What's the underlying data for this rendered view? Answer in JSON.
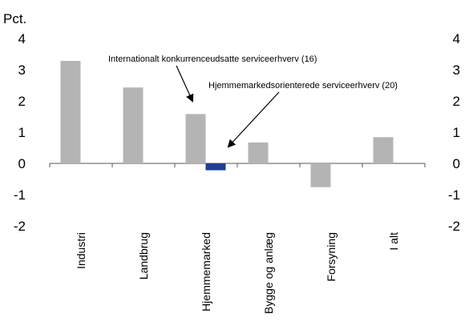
{
  "chart_data": {
    "type": "bar",
    "ylabel": "Pct.",
    "ylim": [
      -2,
      4
    ],
    "yticks": [
      4,
      3,
      2,
      1,
      0,
      -1,
      -2
    ],
    "ytick_labels": [
      "4",
      "3",
      "2",
      "1",
      "0",
      "-1",
      "-2"
    ],
    "categories": [
      "Industri",
      "Landbrug",
      "Hjemmemarked",
      "Bygge og anlæg",
      "Forsyning",
      "I alt"
    ],
    "series": [
      {
        "name": "Internationalt konkurrenceudsatte serviceerhverv (16)",
        "color": "#b4b4b4",
        "values": [
          3.28,
          2.43,
          1.58,
          0.67,
          -0.76,
          0.84
        ]
      },
      {
        "name": "Hjemmemarkedsorienterede serviceerhverv (20)",
        "color": "#1f3f94",
        "values": [
          null,
          null,
          -0.22,
          null,
          null,
          null
        ]
      }
    ],
    "annotations": [
      {
        "text": "Internationalt konkurrenceudsatte serviceerhverv (16)",
        "points_to": "Hjemmemarked, series 1 bar"
      },
      {
        "text": "Hjemmemarkedsorienterede serviceerhverv (20)",
        "points_to": "Hjemmemarked, series 2 bar"
      }
    ],
    "grid": false,
    "legend": "none",
    "dual_y_axis": true
  }
}
